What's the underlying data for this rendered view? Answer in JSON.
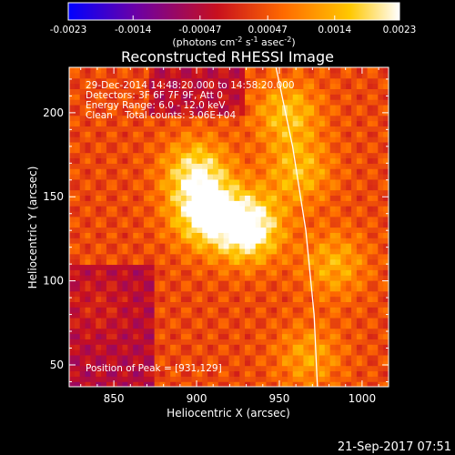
{
  "chart_data": {
    "type": "heatmap",
    "title": "Reconstructed RHESSI Image",
    "xlabel": "Heliocentric X (arcsec)",
    "ylabel": "Heliocentric Y (arcsec)",
    "xlim": [
      823,
      1016
    ],
    "ylim": [
      37,
      227
    ],
    "x_ticks": [
      850,
      900,
      950,
      1000
    ],
    "y_ticks": [
      50,
      100,
      150,
      200
    ],
    "colorbar": {
      "ticks": [
        -0.0023,
        -0.0014,
        -0.00047,
        0.00047,
        0.0014,
        0.0023
      ],
      "tick_labels": [
        "-0.0023",
        "-0.0014",
        "-0.00047",
        "0.00047",
        "0.0014",
        "0.0023"
      ],
      "range": [
        -0.0023,
        0.0023
      ],
      "unit_label": "(photons cm-2 s-1 asec-2)",
      "colors": [
        "#0000ff",
        "#6a00a8",
        "#c8101e",
        "#ff6a00",
        "#ffc800",
        "#ffffff"
      ]
    },
    "annotations": [
      "29-Dec-2014 14:48:20.000 to 14:58:20.000",
      "Detectors: 3F 6F 7F 9F, Att 0",
      "Energy Range: 6.0 - 12.0 keV",
      "Clean    Total counts: 3.06E+04"
    ],
    "peak_label": "Position of Peak = [931,129]",
    "peak": [
      931,
      129
    ],
    "sources": [
      {
        "x": 931,
        "y": 132,
        "value": 0.0023
      },
      {
        "x": 905,
        "y": 140,
        "value": 0.0019
      },
      {
        "x": 900,
        "y": 165,
        "value": 0.0016
      },
      {
        "x": 955,
        "y": 200,
        "value": 0.0012
      },
      {
        "x": 962,
        "y": 165,
        "value": 0.0011
      },
      {
        "x": 983,
        "y": 110,
        "value": 0.001
      },
      {
        "x": 968,
        "y": 55,
        "value": 0.0009
      },
      {
        "x": 840,
        "y": 85,
        "value": 0.0004
      }
    ],
    "limb_line": [
      [
        948,
        227
      ],
      [
        958,
        180
      ],
      [
        966,
        130
      ],
      [
        971,
        80
      ],
      [
        973,
        37
      ]
    ],
    "limb_color": "#ffffff"
  },
  "footer": {
    "timestamp": "21-Sep-2017 07:51"
  }
}
